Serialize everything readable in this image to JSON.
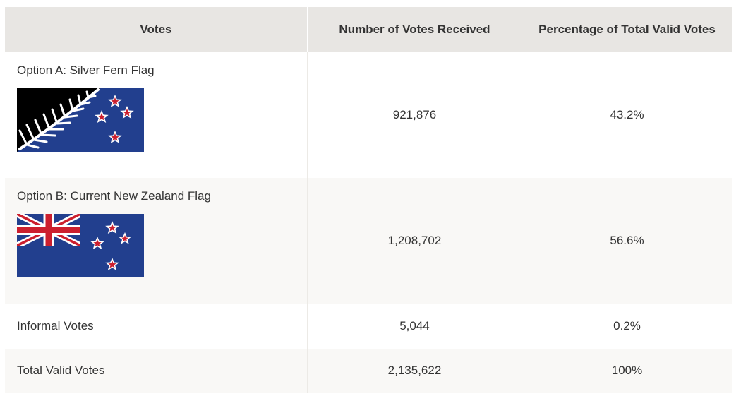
{
  "table": {
    "headers": [
      "Votes",
      "Number of Votes Received",
      "Percentage of Total Valid Votes"
    ],
    "rows": [
      {
        "label": "Option A: Silver Fern Flag",
        "flag_icon": "silver-fern-flag-icon",
        "votes": "921,876",
        "percent": "43.2%"
      },
      {
        "label": "Option B: Current New Zealand Flag",
        "flag_icon": "new-zealand-flag-icon",
        "votes": "1,208,702",
        "percent": "56.6%"
      },
      {
        "label": "Informal Votes",
        "votes": "5,044",
        "percent": "0.2%"
      },
      {
        "label": "Total Valid Votes",
        "votes": "2,135,622",
        "percent": "100%"
      }
    ]
  },
  "colors": {
    "header_bg": "#e8e6e3",
    "alt_row_bg": "#f9f8f6",
    "flag_blue": "#223f8e",
    "flag_red": "#cc1f2e",
    "text": "#333333"
  }
}
